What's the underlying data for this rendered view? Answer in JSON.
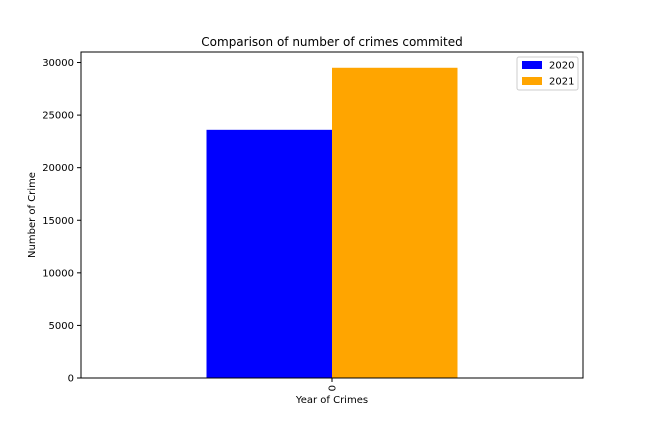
{
  "chart_data": {
    "type": "bar",
    "title": "Comparison of number of crimes commited",
    "xlabel": "Year of Crimes",
    "ylabel": "Number of Crime",
    "categories": [
      "0"
    ],
    "series": [
      {
        "name": "2020",
        "values": [
          23600
        ],
        "color": "#0000ff"
      },
      {
        "name": "2021",
        "values": [
          29500
        ],
        "color": "#ffa500"
      }
    ],
    "ylim": [
      0,
      31000
    ],
    "yticks": [
      0,
      5000,
      10000,
      15000,
      20000,
      25000,
      30000
    ],
    "xtick_rotation": "vertical",
    "grid": false,
    "legend_position": "top-right"
  }
}
